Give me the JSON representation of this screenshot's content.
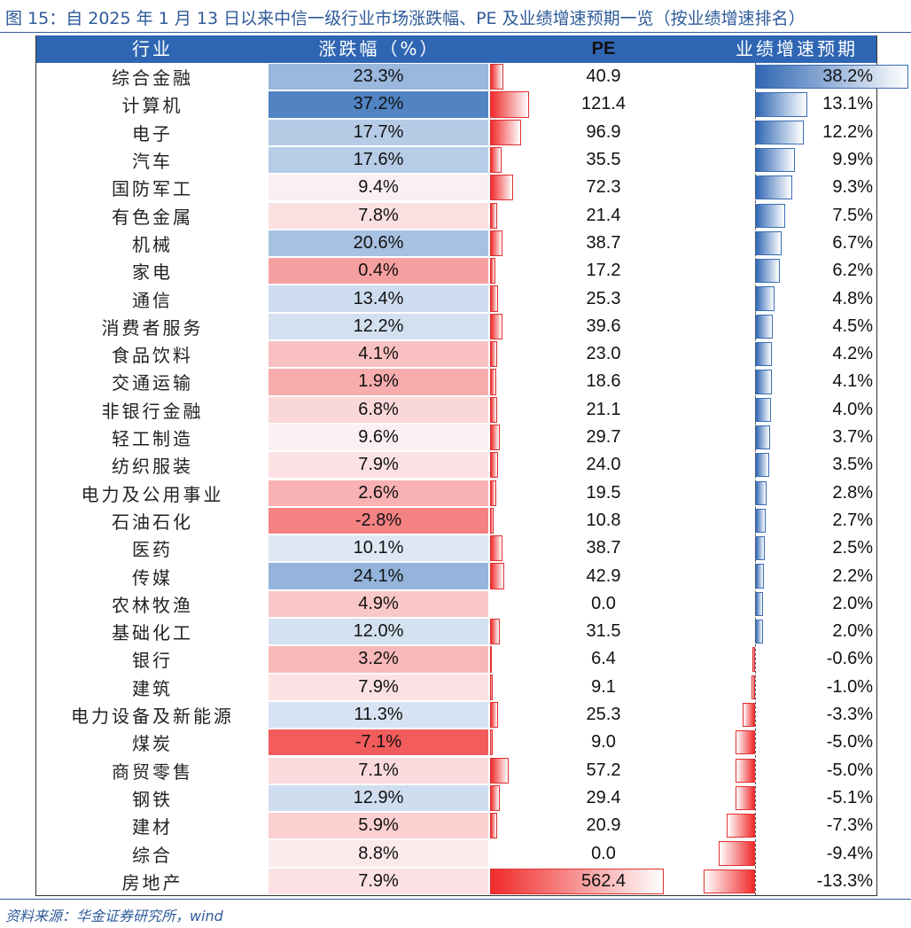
{
  "title": "图 15：自 2025 年 1 月 13 日以来中信一级行业市场涨跌幅、PE 及业绩增速预期一览（按业绩增速排名）",
  "source": "资料来源：华金证券研究所，wind",
  "colors": {
    "header_bg": "#2f66b3",
    "title": "#2e5b9a",
    "positive": "#2f66b3",
    "negative": "#f02a2a"
  },
  "chart_data": {
    "type": "table",
    "columns": [
      "行业",
      "涨跌幅（%）",
      "PE",
      "业绩增速预期（%）"
    ],
    "rows": [
      {
        "industry": "综合金融",
        "change": 23.3,
        "change_label": "23.3%",
        "pe": 40.9,
        "pe_label": "40.9",
        "growth": 38.2,
        "growth_label": "38.2%"
      },
      {
        "industry": "计算机",
        "change": 37.2,
        "change_label": "37.2%",
        "pe": 121.4,
        "pe_label": "121.4",
        "growth": 13.1,
        "growth_label": "13.1%"
      },
      {
        "industry": "电子",
        "change": 17.7,
        "change_label": "17.7%",
        "pe": 96.9,
        "pe_label": "96.9",
        "growth": 12.2,
        "growth_label": "12.2%"
      },
      {
        "industry": "汽车",
        "change": 17.6,
        "change_label": "17.6%",
        "pe": 35.5,
        "pe_label": "35.5",
        "growth": 9.9,
        "growth_label": "9.9%"
      },
      {
        "industry": "国防军工",
        "change": 9.4,
        "change_label": "9.4%",
        "pe": 72.3,
        "pe_label": "72.3",
        "growth": 9.3,
        "growth_label": "9.3%"
      },
      {
        "industry": "有色金属",
        "change": 7.8,
        "change_label": "7.8%",
        "pe": 21.4,
        "pe_label": "21.4",
        "growth": 7.5,
        "growth_label": "7.5%"
      },
      {
        "industry": "机械",
        "change": 20.6,
        "change_label": "20.6%",
        "pe": 38.7,
        "pe_label": "38.7",
        "growth": 6.7,
        "growth_label": "6.7%"
      },
      {
        "industry": "家电",
        "change": 0.4,
        "change_label": "0.4%",
        "pe": 17.2,
        "pe_label": "17.2",
        "growth": 6.2,
        "growth_label": "6.2%"
      },
      {
        "industry": "通信",
        "change": 13.4,
        "change_label": "13.4%",
        "pe": 25.3,
        "pe_label": "25.3",
        "growth": 4.8,
        "growth_label": "4.8%"
      },
      {
        "industry": "消费者服务",
        "change": 12.2,
        "change_label": "12.2%",
        "pe": 39.6,
        "pe_label": "39.6",
        "growth": 4.5,
        "growth_label": "4.5%"
      },
      {
        "industry": "食品饮料",
        "change": 4.1,
        "change_label": "4.1%",
        "pe": 23.0,
        "pe_label": "23.0",
        "growth": 4.2,
        "growth_label": "4.2%"
      },
      {
        "industry": "交通运输",
        "change": 1.9,
        "change_label": "1.9%",
        "pe": 18.6,
        "pe_label": "18.6",
        "growth": 4.1,
        "growth_label": "4.1%"
      },
      {
        "industry": "非银行金融",
        "change": 6.8,
        "change_label": "6.8%",
        "pe": 21.1,
        "pe_label": "21.1",
        "growth": 4.0,
        "growth_label": "4.0%"
      },
      {
        "industry": "轻工制造",
        "change": 9.6,
        "change_label": "9.6%",
        "pe": 29.7,
        "pe_label": "29.7",
        "growth": 3.7,
        "growth_label": "3.7%"
      },
      {
        "industry": "纺织服装",
        "change": 7.9,
        "change_label": "7.9%",
        "pe": 24.0,
        "pe_label": "24.0",
        "growth": 3.5,
        "growth_label": "3.5%"
      },
      {
        "industry": "电力及公用事业",
        "change": 2.6,
        "change_label": "2.6%",
        "pe": 19.5,
        "pe_label": "19.5",
        "growth": 2.8,
        "growth_label": "2.8%"
      },
      {
        "industry": "石油石化",
        "change": -2.8,
        "change_label": "-2.8%",
        "pe": 10.8,
        "pe_label": "10.8",
        "growth": 2.7,
        "growth_label": "2.7%"
      },
      {
        "industry": "医药",
        "change": 10.1,
        "change_label": "10.1%",
        "pe": 38.7,
        "pe_label": "38.7",
        "growth": 2.5,
        "growth_label": "2.5%"
      },
      {
        "industry": "传媒",
        "change": 24.1,
        "change_label": "24.1%",
        "pe": 42.9,
        "pe_label": "42.9",
        "growth": 2.2,
        "growth_label": "2.2%"
      },
      {
        "industry": "农林牧渔",
        "change": 4.9,
        "change_label": "4.9%",
        "pe": 0.0,
        "pe_label": "0.0",
        "growth": 2.0,
        "growth_label": "2.0%"
      },
      {
        "industry": "基础化工",
        "change": 12.0,
        "change_label": "12.0%",
        "pe": 31.5,
        "pe_label": "31.5",
        "growth": 2.0,
        "growth_label": "2.0%"
      },
      {
        "industry": "银行",
        "change": 3.2,
        "change_label": "3.2%",
        "pe": 6.4,
        "pe_label": "6.4",
        "growth": -0.6,
        "growth_label": "-0.6%"
      },
      {
        "industry": "建筑",
        "change": 7.9,
        "change_label": "7.9%",
        "pe": 9.1,
        "pe_label": "9.1",
        "growth": -1.0,
        "growth_label": "-1.0%"
      },
      {
        "industry": "电力设备及新能源",
        "change": 11.3,
        "change_label": "11.3%",
        "pe": 25.3,
        "pe_label": "25.3",
        "growth": -3.3,
        "growth_label": "-3.3%"
      },
      {
        "industry": "煤炭",
        "change": -7.1,
        "change_label": "-7.1%",
        "pe": 9.0,
        "pe_label": "9.0",
        "growth": -5.0,
        "growth_label": "-5.0%"
      },
      {
        "industry": "商贸零售",
        "change": 7.1,
        "change_label": "7.1%",
        "pe": 57.2,
        "pe_label": "57.2",
        "growth": -5.0,
        "growth_label": "-5.0%"
      },
      {
        "industry": "钢铁",
        "change": 12.9,
        "change_label": "12.9%",
        "pe": 29.4,
        "pe_label": "29.4",
        "growth": -5.1,
        "growth_label": "-5.1%"
      },
      {
        "industry": "建材",
        "change": 5.9,
        "change_label": "5.9%",
        "pe": 20.9,
        "pe_label": "20.9",
        "growth": -7.3,
        "growth_label": "-7.3%"
      },
      {
        "industry": "综合",
        "change": 8.8,
        "change_label": "8.8%",
        "pe": 0.0,
        "pe_label": "0.0",
        "growth": -9.4,
        "growth_label": "-9.4%"
      },
      {
        "industry": "房地产",
        "change": 7.9,
        "change_label": "7.9%",
        "pe": 562.4,
        "pe_label": "562.4",
        "growth": -13.3,
        "growth_label": "-13.3%"
      }
    ]
  }
}
